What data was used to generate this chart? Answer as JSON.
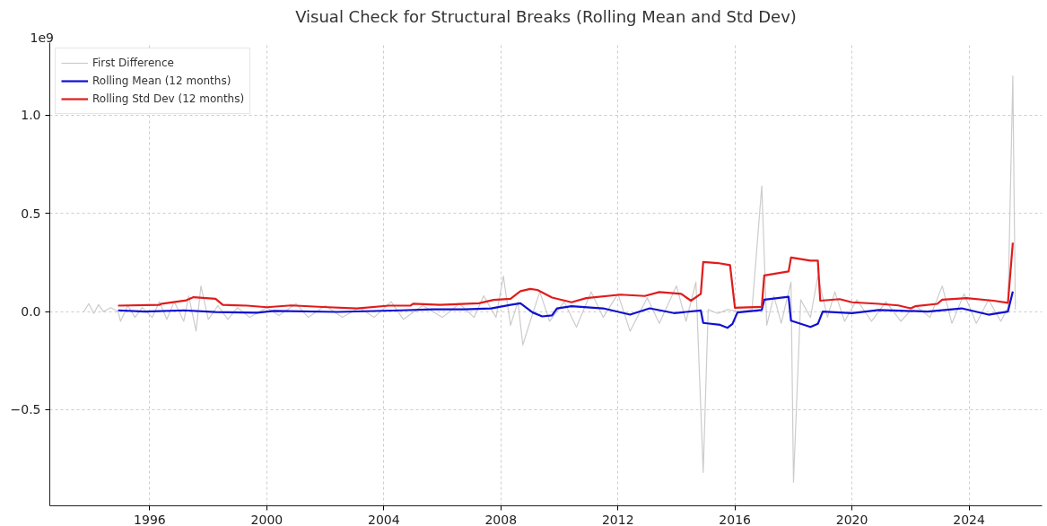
{
  "chart_data": {
    "type": "line",
    "title": "Visual Check for Structural Breaks (Rolling Mean and Std Dev)",
    "annotations": [
      "1e9"
    ],
    "xlim": [
      "1992-08",
      "2026-07"
    ],
    "ylim": [
      -0.99,
      1.37
    ],
    "xticks": [
      "1996",
      "2000",
      "2004",
      "2008",
      "2012",
      "2016",
      "2020",
      "2024"
    ],
    "yticks": [
      {
        "value": -0.5,
        "label": "−0.5"
      },
      {
        "value": 0,
        "label": "0.0"
      },
      {
        "value": 0.5,
        "label": "0.5"
      },
      {
        "value": 1,
        "label": "1.0"
      }
    ],
    "grid": true,
    "legend": "top left",
    "line_style": "solid",
    "marker": "none",
    "series": [
      {
        "name": "First Difference",
        "color": "#cccccc",
        "x": [
          "1993-10",
          "1993-12",
          "1994-02",
          "1994-04",
          "1994-06",
          "1994-09",
          "1994-12",
          "1995-01",
          "1995-04",
          "1995-07",
          "1995-10",
          "1996-02",
          "1996-05",
          "1996-08",
          "1996-11",
          "1997-03",
          "1997-05",
          "1997-08",
          "1997-10",
          "1998-01",
          "1998-05",
          "1998-09",
          "1999-01",
          "1999-06",
          "2000-01",
          "2000-06",
          "2001-01",
          "2001-06",
          "2002-01",
          "2002-08",
          "2003-03",
          "2003-09",
          "2004-04",
          "2004-09",
          "2005-05",
          "2006-01",
          "2006-08",
          "2007-02",
          "2007-06",
          "2007-11",
          "2008-02",
          "2008-05",
          "2008-08",
          "2008-10",
          "2009-01",
          "2009-05",
          "2009-09",
          "2010-03",
          "2010-08",
          "2011-02",
          "2011-07",
          "2012-01",
          "2012-06",
          "2013-01",
          "2013-06",
          "2014-01",
          "2014-05",
          "2014-09",
          "2014-12",
          "2015-02",
          "2015-06",
          "2015-10",
          "2016-03",
          "2016-08",
          "2016-12",
          "2017-02",
          "2017-05",
          "2017-08",
          "2017-12",
          "2018-01",
          "2018-04",
          "2018-08",
          "2018-11",
          "2019-03",
          "2019-06",
          "2019-10",
          "2020-03",
          "2020-09",
          "2021-03",
          "2021-09",
          "2022-03",
          "2022-09",
          "2023-02",
          "2023-06",
          "2023-11",
          "2024-04",
          "2024-09",
          "2025-02",
          "2025-05",
          "2025-07",
          "2025-08"
        ],
        "values": [
          0.0,
          0.04,
          -0.01,
          0.035,
          0.0,
          0.02,
          0.0,
          -0.05,
          0.03,
          -0.03,
          0.02,
          -0.03,
          0.05,
          -0.04,
          0.05,
          -0.05,
          0.08,
          -0.1,
          0.13,
          -0.04,
          0.03,
          -0.04,
          0.02,
          -0.03,
          0.02,
          -0.02,
          0.04,
          -0.03,
          0.03,
          -0.03,
          0.02,
          -0.03,
          0.05,
          -0.04,
          0.03,
          -0.03,
          0.04,
          -0.03,
          0.08,
          -0.03,
          0.18,
          -0.07,
          0.05,
          -0.17,
          -0.05,
          0.1,
          -0.05,
          0.05,
          -0.08,
          0.1,
          -0.03,
          0.09,
          -0.1,
          0.07,
          -0.06,
          0.13,
          -0.05,
          0.15,
          -0.82,
          0.01,
          -0.01,
          0.01,
          0.0,
          0.01,
          0.64,
          -0.07,
          0.08,
          -0.06,
          0.15,
          -0.87,
          0.06,
          -0.03,
          0.18,
          -0.03,
          0.1,
          -0.05,
          0.06,
          -0.05,
          0.05,
          -0.05,
          0.03,
          -0.03,
          0.13,
          -0.06,
          0.09,
          -0.06,
          0.06,
          -0.05,
          0.02,
          1.2,
          0.01
        ]
      },
      {
        "name": "Rolling Mean (12 months)",
        "color": "#1010d0",
        "x": [
          "1994-12",
          "1995-11",
          "1997-03",
          "1998-04",
          "1999-09",
          "2000-04",
          "2002-06",
          "2004-08",
          "2005-09",
          "2006-10",
          "2007-09",
          "2008-05",
          "2008-09",
          "2009-02",
          "2009-06",
          "2009-10",
          "2009-12",
          "2010-06",
          "2011-07",
          "2012-06",
          "2013-02",
          "2013-12",
          "2014-11",
          "2014-12",
          "2015-07",
          "2015-10",
          "2015-12",
          "2016-02",
          "2016-12",
          "2017-01",
          "2017-11",
          "2017-12",
          "2018-08",
          "2018-11",
          "2019-01",
          "2020-01",
          "2020-12",
          "2022-08",
          "2023-10",
          "2024-09",
          "2025-05",
          "2025-07"
        ],
        "values": [
          0.006,
          0.0,
          0.006,
          -0.003,
          -0.006,
          0.003,
          -0.002,
          0.006,
          0.011,
          0.011,
          0.016,
          0.034,
          0.042,
          -0.005,
          -0.025,
          -0.02,
          0.016,
          0.027,
          0.016,
          -0.016,
          0.016,
          -0.008,
          0.005,
          -0.058,
          -0.068,
          -0.083,
          -0.063,
          -0.005,
          0.008,
          0.06,
          0.075,
          -0.047,
          -0.079,
          -0.063,
          0.0,
          -0.008,
          0.008,
          0.0,
          0.016,
          -0.016,
          0.0,
          0.102
        ]
      },
      {
        "name": "Rolling Std Dev (12 months)",
        "color": "#e01c1c",
        "x": [
          "1994-12",
          "1996-05",
          "1996-06",
          "1997-04",
          "1997-07",
          "1998-04",
          "1998-07",
          "1999-05",
          "2000-01",
          "2000-11",
          "2001-12",
          "2003-02",
          "2004-03",
          "2004-12",
          "2005-01",
          "2005-12",
          "2007-04",
          "2007-10",
          "2008-05",
          "2008-09",
          "2009-01",
          "2009-04",
          "2009-10",
          "2010-06",
          "2010-12",
          "2012-02",
          "2012-12",
          "2013-06",
          "2014-03",
          "2014-07",
          "2014-11",
          "2014-12",
          "2015-06",
          "2015-11",
          "2016-01",
          "2016-12",
          "2017-01",
          "2017-11",
          "2017-12",
          "2018-08",
          "2018-11",
          "2018-12",
          "2019-08",
          "2020-01",
          "2020-12",
          "2021-08",
          "2022-01",
          "2022-03",
          "2022-12",
          "2023-02",
          "2023-12",
          "2024-11",
          "2025-05",
          "2025-07"
        ],
        "values": [
          0.03,
          0.034,
          0.04,
          0.057,
          0.073,
          0.065,
          0.034,
          0.03,
          0.022,
          0.031,
          0.023,
          0.016,
          0.03,
          0.03,
          0.04,
          0.034,
          0.042,
          0.059,
          0.065,
          0.104,
          0.115,
          0.11,
          0.071,
          0.047,
          0.068,
          0.086,
          0.079,
          0.099,
          0.09,
          0.055,
          0.09,
          0.252,
          0.247,
          0.236,
          0.019,
          0.024,
          0.184,
          0.204,
          0.275,
          0.259,
          0.259,
          0.055,
          0.063,
          0.047,
          0.039,
          0.031,
          0.016,
          0.027,
          0.039,
          0.06,
          0.068,
          0.055,
          0.044,
          0.351
        ]
      }
    ]
  }
}
